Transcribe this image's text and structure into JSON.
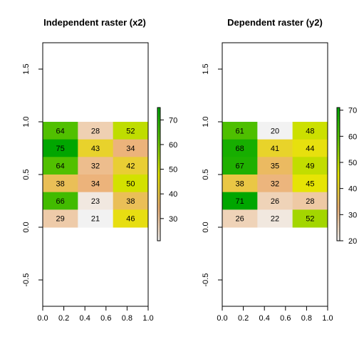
{
  "chart_data": [
    {
      "type": "heatmap",
      "title": "Independent raster (x2)",
      "xlim": [
        0,
        1.0
      ],
      "ylim": [
        -0.75,
        1.75
      ],
      "x_ticks": [
        "0.0",
        "0.2",
        "0.4",
        "0.6",
        "0.8",
        "1.0"
      ],
      "y_ticks": [
        "-0.5",
        "0.0",
        "0.5",
        "1.0",
        "1.5"
      ],
      "grid": false,
      "raster_extent": {
        "x": [
          0,
          1
        ],
        "y": [
          0,
          1
        ]
      },
      "values": [
        [
          64,
          28,
          52
        ],
        [
          75,
          43,
          34
        ],
        [
          64,
          32,
          42
        ],
        [
          38,
          34,
          50
        ],
        [
          66,
          23,
          38
        ],
        [
          29,
          21,
          46
        ]
      ],
      "legend": {
        "placement": "right",
        "range": [
          21,
          75
        ],
        "ticks": [
          "30",
          "40",
          "50",
          "60",
          "70"
        ]
      }
    },
    {
      "type": "heatmap",
      "title": "Dependent raster (y2)",
      "xlim": [
        0,
        1.0
      ],
      "ylim": [
        -0.75,
        1.75
      ],
      "x_ticks": [
        "0.0",
        "0.2",
        "0.4",
        "0.6",
        "0.8",
        "1.0"
      ],
      "y_ticks": [
        "-0.5",
        "0.0",
        "0.5",
        "1.0",
        "1.5"
      ],
      "grid": false,
      "raster_extent": {
        "x": [
          0,
          1
        ],
        "y": [
          0,
          1
        ]
      },
      "values": [
        [
          61,
          20,
          48
        ],
        [
          68,
          41,
          44
        ],
        [
          67,
          35,
          49
        ],
        [
          38,
          32,
          45
        ],
        [
          71,
          26,
          28
        ],
        [
          26,
          22,
          52
        ]
      ],
      "legend": {
        "placement": "right",
        "range": [
          20,
          71
        ],
        "ticks": [
          "20",
          "30",
          "40",
          "50",
          "60",
          "70"
        ]
      }
    }
  ],
  "colors": {
    "terrain_ramp": [
      "#f2f2f2",
      "#ecb176",
      "#e6e600",
      "#63c600",
      "#00a600"
    ],
    "axis": "#000000"
  }
}
